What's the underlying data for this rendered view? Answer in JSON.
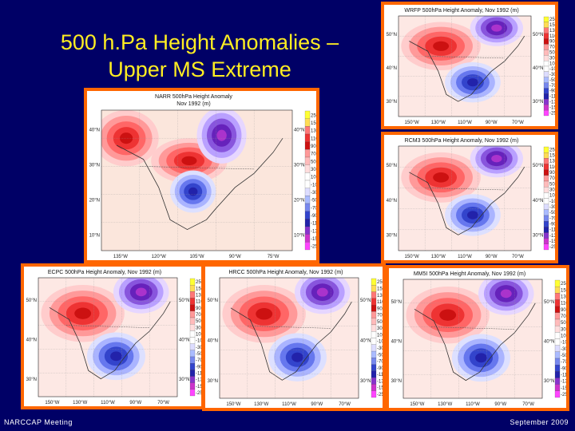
{
  "slide": {
    "title_line1": "500 h.Pa Height Anomalies –",
    "title_line2": "Upper MS Extreme",
    "footer_left": "NARCCAP Meeting",
    "footer_right": "September 2009",
    "background_color": "#000066",
    "title_color": "#ffee22",
    "frame_color": "#ff6600"
  },
  "scale_values": [
    "250",
    "150",
    "130",
    "110",
    "90",
    "70",
    "50",
    "30",
    "10",
    "-10",
    "-30",
    "-50",
    "-70",
    "-90",
    "-110",
    "-130",
    "-150",
    "-250"
  ],
  "scale_colors": [
    "#ffff33",
    "#ffdd55",
    "#ff7777",
    "#ee3333",
    "#cc1111",
    "#ff9999",
    "#ffbbbb",
    "#ffdddd",
    "#ffffff",
    "#ffffff",
    "#ddddff",
    "#aabbff",
    "#7788ee",
    "#3344cc",
    "#2222aa",
    "#8833cc",
    "#cc33cc",
    "#ff44ff"
  ],
  "panels": [
    {
      "id": "narr",
      "title": "NARR 500hPa Height Anomaly",
      "subtitle": "Nov 1992 (m)",
      "lat_left": [
        "40°N",
        "30°N",
        "20°N",
        "10°N"
      ],
      "lat_right": [
        "40°N",
        "30°N",
        "20°N",
        "10°N"
      ],
      "lon_labels": [
        "135°W",
        "120°W",
        "105°W",
        "90°W",
        "75°W"
      ]
    },
    {
      "id": "wrfp",
      "title": "WRFP 500hPa Height Anomaly, Nov 1992 (m)",
      "lat_left": [
        "50°N",
        "40°N",
        "30°N"
      ],
      "lat_right": [
        "50°N",
        "40°N",
        "30°N"
      ],
      "lon_labels": [
        "150°W",
        "130°W",
        "110°W",
        "90°W",
        "70°W"
      ]
    },
    {
      "id": "rcm3",
      "title": "RCM3 500hPa Height Anomaly, Nov 1992 (m)",
      "lat_left": [
        "50°N",
        "40°N",
        "30°N"
      ],
      "lat_right": [
        "50°N",
        "40°N",
        "30°N"
      ],
      "lon_labels": [
        "150°W",
        "130°W",
        "110°W",
        "90°W",
        "70°W"
      ]
    },
    {
      "id": "ecpc",
      "title": "ECPC 500hPa Height Anomaly, Nov 1992 (m)",
      "lat_left": [
        "50°N",
        "40°N",
        "30°N"
      ],
      "lat_right": [
        "50°N",
        "40°N",
        "30°N"
      ],
      "lon_labels": [
        "150°W",
        "130°W",
        "110°W",
        "90°W",
        "70°W"
      ]
    },
    {
      "id": "hrcc",
      "title": "HRCC 500hPa Height Anomaly, Nov 1992 (m)",
      "lat_left": [
        "50°N",
        "40°N",
        "30°N"
      ],
      "lat_right": [
        "50°N",
        "40°N",
        "30°N"
      ],
      "lon_labels": [
        "150°W",
        "130°W",
        "110°W",
        "90°W",
        "70°W"
      ]
    },
    {
      "id": "mm5i",
      "title": "MM5I 500hPa Height Anomaly, Nov 1992 (m)",
      "lat_left": [
        "50°N",
        "40°N",
        "30°N"
      ],
      "lat_right": [
        "50°N",
        "40°N",
        "30°N"
      ],
      "lon_labels": [
        "150°W",
        "130°W",
        "110°W",
        "90°W",
        "70°W"
      ]
    }
  ]
}
